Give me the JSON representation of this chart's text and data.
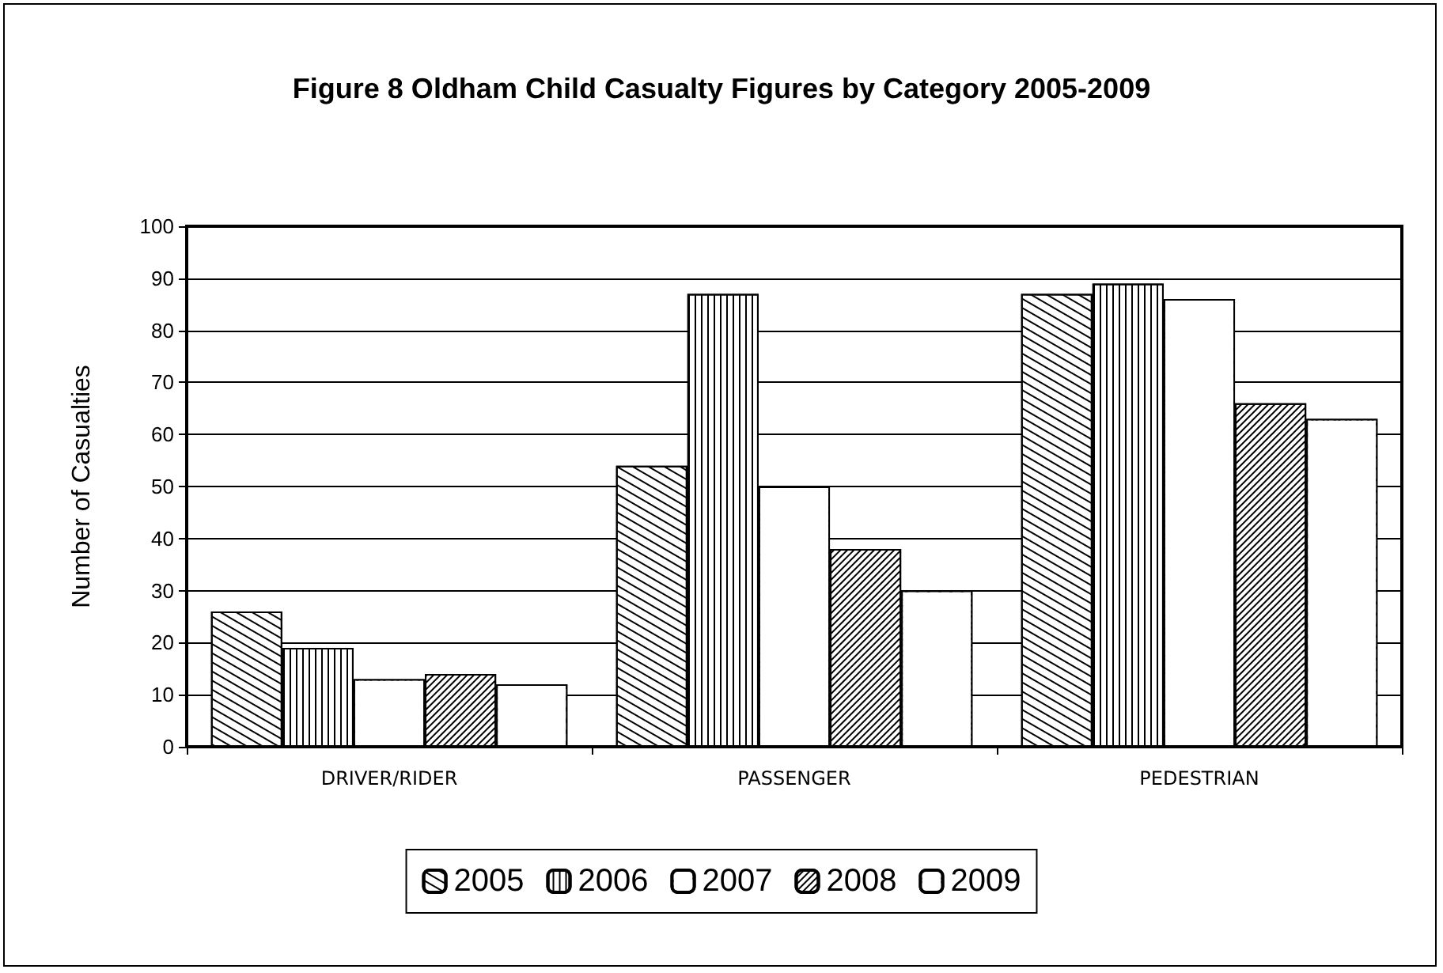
{
  "chart_data": {
    "type": "bar",
    "title": "Figure 8 Oldham Child Casualty Figures by Category 2005-2009",
    "ylabel": "Number of Casualties",
    "categories": [
      "DRIVER/RIDER",
      "PASSENGER",
      "PEDESTRIAN"
    ],
    "series": [
      {
        "name": "2005",
        "color": "#ffffff",
        "values": [
          26,
          54,
          87
        ]
      },
      {
        "name": "2006",
        "color": "#ffffff",
        "values": [
          19,
          87,
          89
        ]
      },
      {
        "name": "2007",
        "color": "#ffffff",
        "values": [
          13,
          50,
          86
        ]
      },
      {
        "name": "2008",
        "color": "#ffffff",
        "values": [
          14,
          38,
          66
        ]
      },
      {
        "name": "2009",
        "color": "#ffffff",
        "values": [
          12,
          30,
          63
        ]
      }
    ],
    "ylim": [
      0,
      100
    ],
    "yticks": [
      0,
      10,
      20,
      30,
      40,
      50,
      60,
      70,
      80,
      90,
      100
    ],
    "grid": "y",
    "legend": "bottom"
  }
}
